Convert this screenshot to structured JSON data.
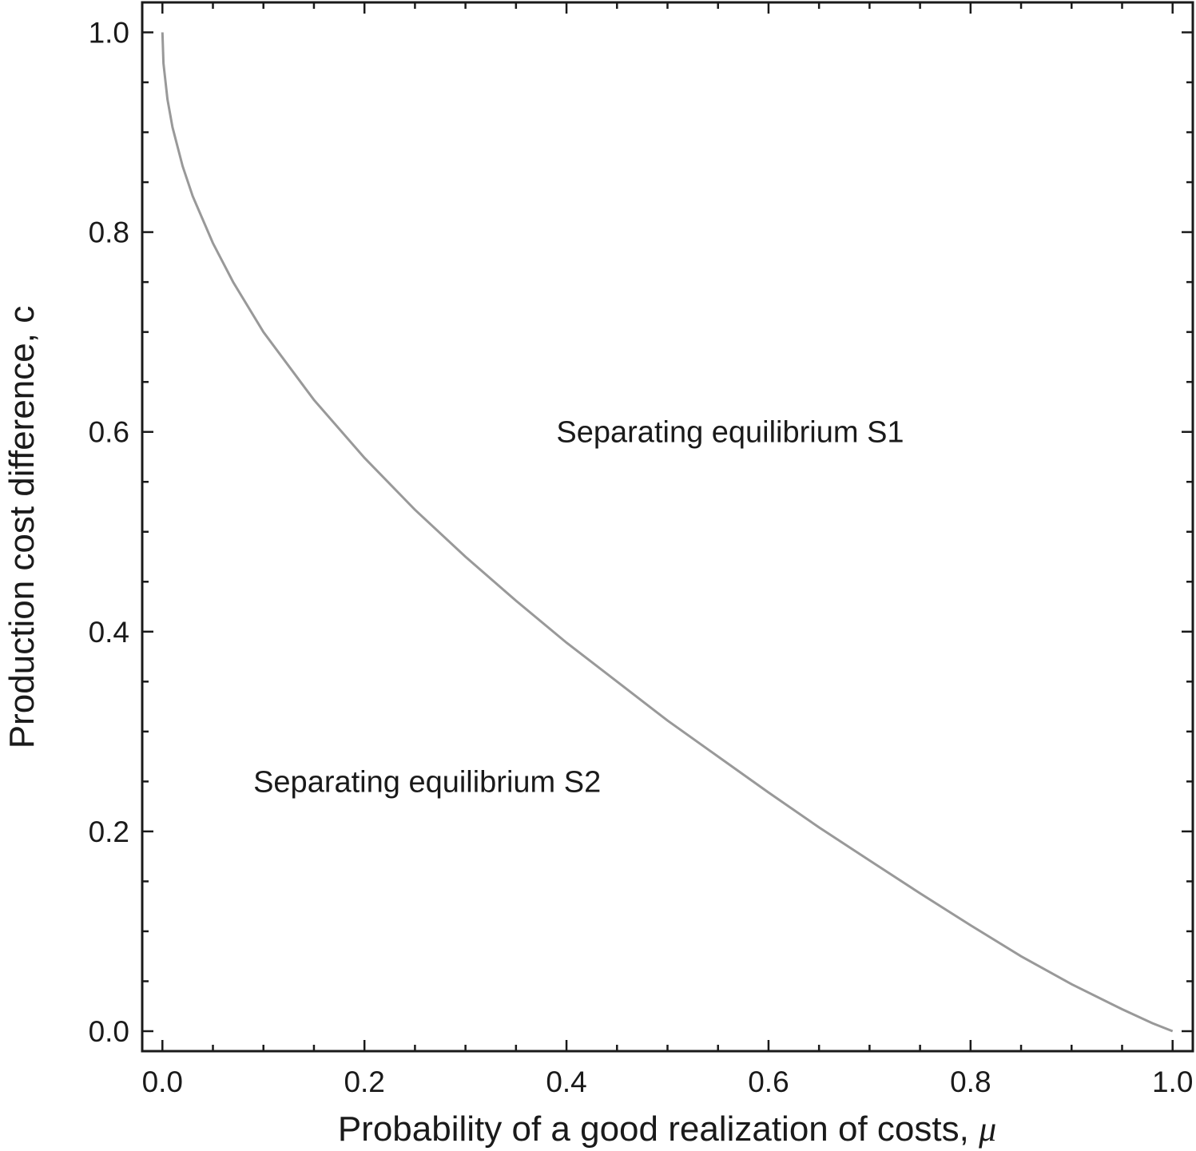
{
  "chart_data": {
    "type": "line",
    "title": "",
    "xlabel": "Probability of a good realization of costs,",
    "xlabel_symbol": "μ",
    "ylabel": "Production cost difference, c",
    "xlim": [
      -0.02,
      1.02
    ],
    "ylim": [
      -0.02,
      1.03
    ],
    "x_ticks": [
      0.0,
      0.2,
      0.4,
      0.6,
      0.8,
      1.0
    ],
    "x_tick_labels": [
      "0.0",
      "0.2",
      "0.4",
      "0.6",
      "0.8",
      "1.0"
    ],
    "y_ticks": [
      0.0,
      0.2,
      0.4,
      0.6,
      0.8,
      1.0
    ],
    "y_tick_labels": [
      "0.0",
      "0.2",
      "0.4",
      "0.6",
      "0.8",
      "1.0"
    ],
    "grid": false,
    "line_color": "#999999",
    "series": [
      {
        "name": "",
        "x": [
          0.0,
          0.001,
          0.005,
          0.01,
          0.02,
          0.03,
          0.05,
          0.07,
          0.1,
          0.15,
          0.2,
          0.25,
          0.3,
          0.35,
          0.4,
          0.45,
          0.5,
          0.55,
          0.6,
          0.65,
          0.7,
          0.75,
          0.8,
          0.85,
          0.9,
          0.95,
          0.98,
          1.0
        ],
        "values": [
          1.0,
          0.969,
          0.933,
          0.905,
          0.866,
          0.836,
          0.789,
          0.75,
          0.7,
          0.632,
          0.574,
          0.522,
          0.475,
          0.431,
          0.389,
          0.35,
          0.311,
          0.275,
          0.239,
          0.204,
          0.171,
          0.138,
          0.106,
          0.075,
          0.047,
          0.022,
          0.008,
          0.0
        ]
      }
    ],
    "annotations": [
      {
        "text": "Separating equilibrium S1",
        "x": 0.39,
        "y": 0.6
      },
      {
        "text": "Separating equilibrium S2",
        "x": 0.09,
        "y": 0.25
      }
    ]
  }
}
